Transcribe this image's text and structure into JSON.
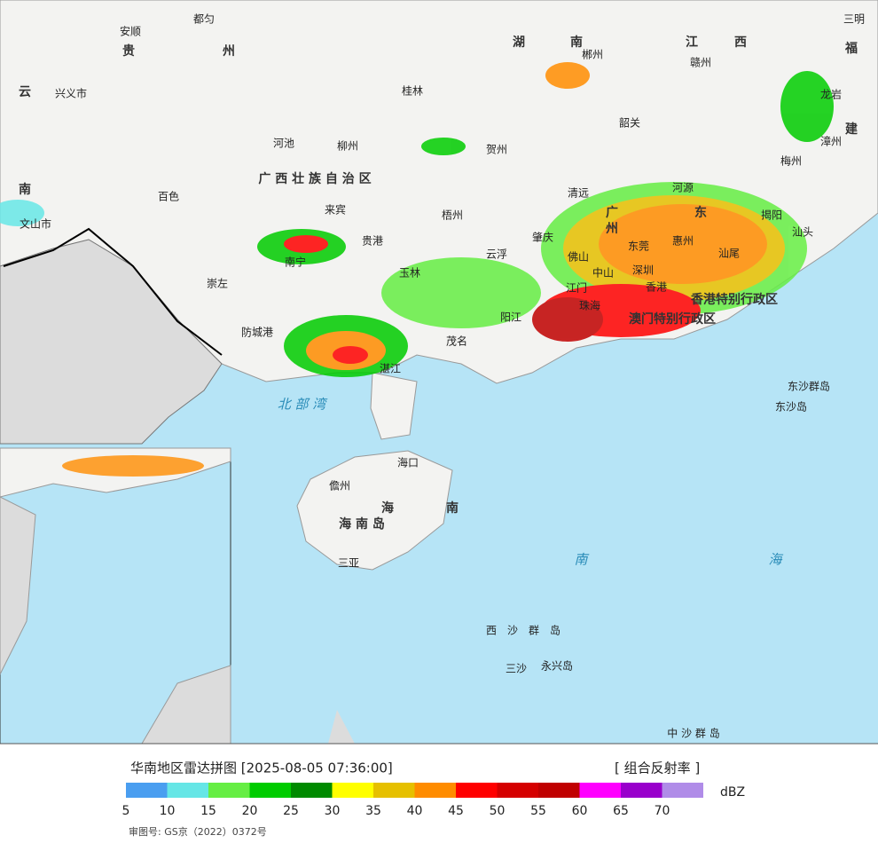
{
  "title": "华南地区雷达拼图 [2025-08-05 07:36:00]",
  "product": "[ 组合反射率 ]",
  "unit": "dBZ",
  "legend": {
    "colors": [
      "#4a9ef0",
      "#66e6e6",
      "#66ee44",
      "#00cc00",
      "#008a00",
      "#ffff00",
      "#e6c000",
      "#ff8c00",
      "#ff0000",
      "#d50000",
      "#c00000",
      "#ff00ff",
      "#9900cc",
      "#b08ce8"
    ],
    "ticks": [
      5,
      10,
      15,
      20,
      25,
      30,
      35,
      40,
      45,
      50,
      55,
      60,
      65,
      70
    ]
  },
  "approval": "审图号: GS京（2022）0372号",
  "places": [
    "安顺",
    "都匀",
    "贵",
    "州",
    "兴义市",
    "云",
    "河池",
    "柳州",
    "广 西 壮 族 自 治 区",
    "百色",
    "来宾",
    "贵港",
    "南宁",
    "崇左",
    "防城港",
    "玉林",
    "梧州",
    "桂林",
    "贺州",
    "湖",
    "南",
    "郴州",
    "江",
    "西",
    "赣州",
    "韶关",
    "清远",
    "河源",
    "梅州",
    "漳州",
    "龙岩",
    "三明",
    "福",
    "建",
    "汕头",
    "揭阳",
    "广",
    "东",
    "州",
    "东莞",
    "惠州",
    "汕尾",
    "肇庆",
    "佛山",
    "云浮",
    "中山",
    "深圳",
    "香港",
    "珠海",
    "江门",
    "阳江",
    "茂名",
    "湛江",
    "海口",
    "儋州",
    "海 南 岛",
    "海",
    "南",
    "三亚",
    "文山市",
    "南",
    "香港特别行政区",
    "澳门特别行政区"
  ],
  "seas": [
    "北 部 湾",
    "南",
    "海",
    "西　沙　群　岛",
    "三沙",
    "永兴岛",
    "中 沙 群 岛",
    "东沙群岛",
    "东沙岛"
  ]
}
